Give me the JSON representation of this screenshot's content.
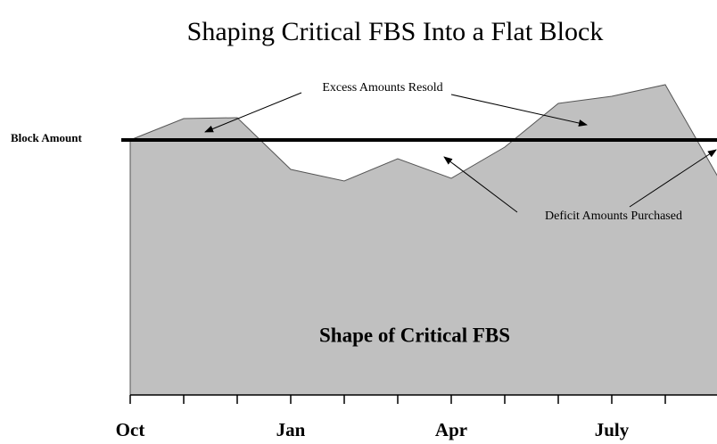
{
  "chart_data": {
    "type": "area",
    "title": "Shaping Critical FBS Into a Flat Block",
    "categories": [
      "Oct",
      null,
      null,
      "Jan",
      null,
      null,
      "Apr",
      null,
      null,
      "July",
      null,
      null
    ],
    "values": [
      286,
      310,
      311,
      253,
      240,
      265,
      243,
      278,
      327,
      335,
      348,
      243
    ],
    "color": "#c0c0c0",
    "ylim": [
      0,
      360
    ],
    "block_amount": 286,
    "block_label": "Block Amount",
    "area_label": "Shape of Critical FBS",
    "annotations": [
      "Excess Amounts Resold",
      "Deficit Amounts Purchased"
    ]
  }
}
